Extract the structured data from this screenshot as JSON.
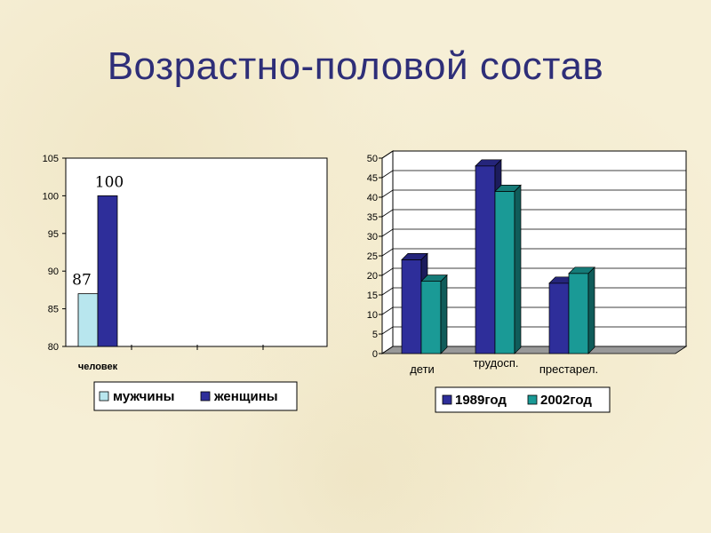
{
  "slide": {
    "title": "Возрастно-половой состав"
  },
  "chart_data": [
    {
      "type": "bar",
      "categories": [
        "человек"
      ],
      "series": [
        {
          "name": "мужчины",
          "values": [
            87
          ],
          "color": "#b8e6ee"
        },
        {
          "name": "женщины",
          "values": [
            100
          ],
          "color": "#2e2e9a"
        }
      ],
      "data_labels": [
        "87",
        "100"
      ],
      "ylim": [
        80,
        105
      ],
      "yticks": [
        "80",
        "85",
        "90",
        "95",
        "100",
        "105"
      ],
      "grid": false,
      "legend": "bottom"
    },
    {
      "type": "bar",
      "style": "3d",
      "categories": [
        "дети",
        "трудосп.",
        "престарел."
      ],
      "series": [
        {
          "name": "1989год",
          "values": [
            24,
            48,
            18
          ],
          "color": "#2e2e9a"
        },
        {
          "name": "2002год",
          "values": [
            18.5,
            41.5,
            20.5
          ],
          "color": "#1a9a96"
        }
      ],
      "ylim": [
        0,
        50
      ],
      "yticks": [
        "0",
        "5",
        "10",
        "15",
        "20",
        "25",
        "30",
        "35",
        "40",
        "45",
        "50"
      ],
      "grid": true,
      "legend": "bottom"
    }
  ]
}
